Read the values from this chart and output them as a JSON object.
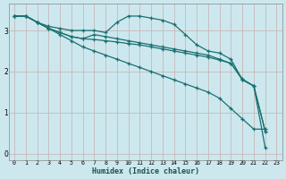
{
  "xlabel": "Humidex (Indice chaleur)",
  "bg_color": "#cce8ee",
  "line_color": "#1a7070",
  "grid_color": "#c8b8b8",
  "xlim": [
    -0.5,
    23.5
  ],
  "ylim": [
    -0.15,
    3.65
  ],
  "xticks": [
    0,
    1,
    2,
    3,
    4,
    5,
    6,
    7,
    8,
    9,
    10,
    11,
    12,
    13,
    14,
    15,
    16,
    17,
    18,
    19,
    20,
    21,
    22,
    23
  ],
  "yticks": [
    0,
    1,
    2,
    3
  ],
  "lines": [
    {
      "x": [
        0,
        1,
        2,
        3,
        4,
        5,
        6,
        7,
        8,
        9,
        10,
        11,
        12,
        13,
        14,
        15,
        16,
        17,
        18,
        19,
        20,
        21,
        22
      ],
      "y": [
        3.35,
        3.35,
        3.2,
        3.05,
        2.9,
        2.75,
        2.6,
        2.5,
        2.4,
        2.3,
        2.2,
        2.1,
        2.0,
        1.9,
        1.8,
        1.7,
        1.6,
        1.5,
        1.35,
        1.1,
        0.85,
        0.6,
        0.6
      ]
    },
    {
      "x": [
        0,
        1,
        2,
        3,
        4,
        5,
        6,
        7,
        8,
        9,
        10,
        11,
        12,
        13,
        14,
        15,
        16,
        17,
        18,
        19,
        20,
        21,
        22
      ],
      "y": [
        3.35,
        3.35,
        3.2,
        3.1,
        3.05,
        3.0,
        3.0,
        3.0,
        2.95,
        3.2,
        3.35,
        3.35,
        3.3,
        3.25,
        3.15,
        2.9,
        2.65,
        2.5,
        2.45,
        2.3,
        1.8,
        1.65,
        0.15
      ]
    },
    {
      "x": [
        0,
        1,
        2,
        3,
        4,
        5,
        6,
        7,
        8,
        9,
        10,
        11,
        12,
        13,
        14,
        15,
        16,
        17,
        18,
        19,
        20,
        21,
        22
      ],
      "y": [
        3.35,
        3.35,
        3.2,
        3.05,
        2.95,
        2.85,
        2.8,
        2.9,
        2.85,
        2.8,
        2.75,
        2.7,
        2.65,
        2.6,
        2.55,
        2.5,
        2.45,
        2.4,
        2.3,
        2.2,
        1.8,
        1.65,
        0.55
      ]
    },
    {
      "x": [
        0,
        1,
        2,
        3,
        4,
        5,
        6,
        7,
        8,
        9,
        10,
        11,
        12,
        13,
        14,
        15,
        16,
        17,
        18,
        19,
        20,
        21,
        22
      ],
      "y": [
        3.35,
        3.35,
        3.2,
        3.05,
        2.95,
        2.85,
        2.8,
        2.78,
        2.75,
        2.72,
        2.68,
        2.65,
        2.6,
        2.55,
        2.5,
        2.45,
        2.4,
        2.35,
        2.28,
        2.2,
        1.82,
        1.65,
        0.55
      ]
    }
  ]
}
